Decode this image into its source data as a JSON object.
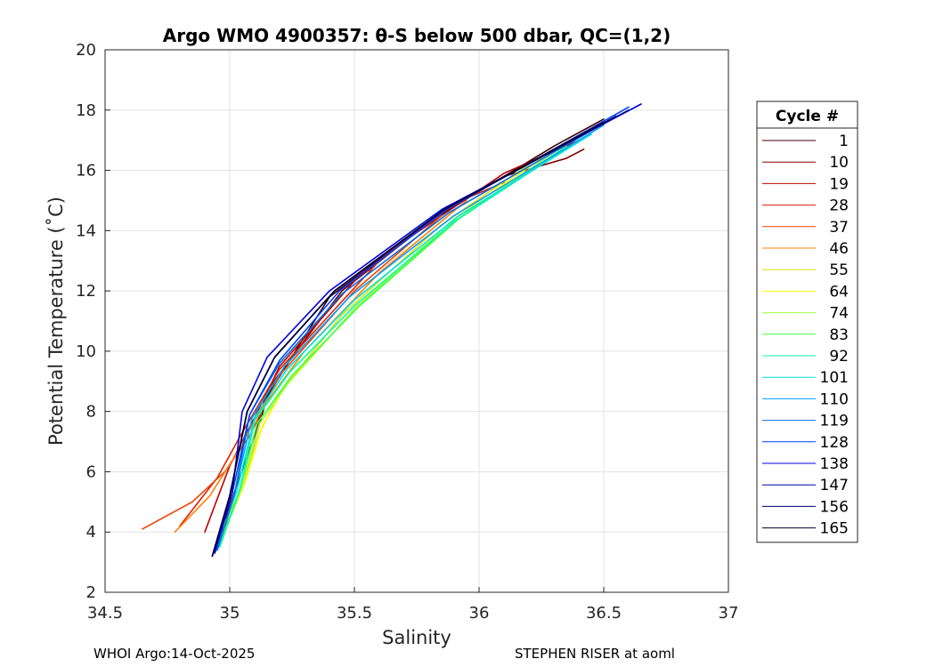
{
  "chart_data": {
    "type": "line",
    "title": "Argo WMO 4900357: θ-S below 500 dbar,  QC=(1,2)",
    "xlabel": "Salinity",
    "ylabel": "Potential Temperature (˚C)",
    "xlim": [
      34.5,
      37
    ],
    "ylim": [
      2,
      20
    ],
    "xticks": [
      "34.5",
      "35",
      "35.5",
      "36",
      "36.5",
      "37"
    ],
    "yticks": [
      "2",
      "4",
      "6",
      "8",
      "10",
      "12",
      "14",
      "16",
      "18",
      "20"
    ],
    "grid": true,
    "legend_title": "Cycle #",
    "legend_position": "outside-right",
    "series": [
      {
        "name": "1",
        "color": "#400000",
        "x": [
          34.95,
          35.05,
          35.1,
          35.15,
          35.4,
          35.8,
          36.1,
          36.3,
          36.5
        ],
        "y": [
          3.5,
          5.5,
          7.0,
          8.5,
          11.8,
          14.3,
          15.8,
          16.8,
          17.7
        ]
      },
      {
        "name": "10",
        "color": "#800000",
        "x": [
          34.95,
          35.03,
          35.1,
          35.15,
          35.45,
          35.85,
          36.1,
          36.35,
          36.42
        ],
        "y": [
          3.6,
          5.6,
          7.2,
          8.7,
          12.0,
          14.6,
          15.8,
          16.4,
          16.7
        ]
      },
      {
        "name": "19",
        "color": "#c00000",
        "x": [
          34.9,
          35.0,
          35.1,
          35.2,
          35.55,
          35.85,
          36.1,
          36.4
        ],
        "y": [
          4.0,
          6.2,
          7.8,
          9.5,
          12.8,
          14.5,
          15.9,
          17.0
        ]
      },
      {
        "name": "28",
        "color": "#e02000",
        "x": [
          34.8,
          34.95,
          35.05,
          35.2,
          35.6,
          35.9,
          36.1
        ],
        "y": [
          4.2,
          5.8,
          7.3,
          9.4,
          13.0,
          14.9,
          15.6
        ]
      },
      {
        "name": "37",
        "color": "#f04000",
        "x": [
          34.65,
          34.85,
          34.98,
          35.08,
          35.2,
          35.5,
          35.85
        ],
        "y": [
          4.1,
          5.0,
          6.0,
          7.2,
          9.2,
          12.0,
          14.5
        ]
      },
      {
        "name": "46",
        "color": "#ff8000",
        "x": [
          34.78,
          34.92,
          35.02,
          35.12,
          35.3,
          35.6,
          35.95
        ],
        "y": [
          4.0,
          5.2,
          6.5,
          8.0,
          10.0,
          12.6,
          15.0
        ]
      },
      {
        "name": "55",
        "color": "#e0e000",
        "x": [
          34.95,
          35.05,
          35.12,
          35.2,
          35.45,
          35.85,
          36.2
        ],
        "y": [
          3.8,
          5.5,
          7.3,
          8.6,
          11.2,
          14.2,
          16.2
        ]
      },
      {
        "name": "64",
        "color": "#ffff00",
        "x": [
          34.96,
          35.06,
          35.13,
          35.22,
          35.5,
          35.9,
          36.25
        ],
        "y": [
          3.7,
          5.6,
          7.5,
          8.8,
          11.4,
          14.4,
          16.4
        ]
      },
      {
        "name": "74",
        "color": "#a0ff40",
        "x": [
          34.96,
          35.05,
          35.12,
          35.24,
          35.5,
          35.9,
          36.3
        ],
        "y": [
          3.6,
          5.5,
          7.6,
          9.0,
          11.4,
          14.3,
          16.6
        ]
      },
      {
        "name": "83",
        "color": "#40ff40",
        "x": [
          34.96,
          35.04,
          35.11,
          35.25,
          35.52,
          35.92,
          36.35
        ],
        "y": [
          3.6,
          5.4,
          7.6,
          9.2,
          11.5,
          14.4,
          16.8
        ]
      },
      {
        "name": "92",
        "color": "#00ffa0",
        "x": [
          34.96,
          35.04,
          35.1,
          35.24,
          35.5,
          35.9,
          36.4
        ],
        "y": [
          3.5,
          5.4,
          7.7,
          9.3,
          11.5,
          14.3,
          17.0
        ]
      },
      {
        "name": "101",
        "color": "#00e0e0",
        "x": [
          34.95,
          35.03,
          35.1,
          35.23,
          35.5,
          35.92,
          36.45
        ],
        "y": [
          3.5,
          5.4,
          7.8,
          9.4,
          11.7,
          14.5,
          17.2
        ]
      },
      {
        "name": "110",
        "color": "#00a0ff",
        "x": [
          34.95,
          35.02,
          35.09,
          35.22,
          35.48,
          35.9,
          36.5
        ],
        "y": [
          3.4,
          5.3,
          7.8,
          9.5,
          11.8,
          14.5,
          17.5
        ]
      },
      {
        "name": "119",
        "color": "#0070e0",
        "x": [
          34.95,
          35.02,
          35.08,
          35.2,
          35.45,
          35.88,
          36.55
        ],
        "y": [
          3.4,
          5.3,
          7.9,
          9.6,
          11.9,
          14.6,
          17.8
        ]
      },
      {
        "name": "128",
        "color": "#0040ff",
        "x": [
          34.94,
          35.01,
          35.08,
          35.2,
          35.44,
          35.87,
          36.6
        ],
        "y": [
          3.3,
          5.3,
          7.9,
          9.7,
          12.0,
          14.7,
          18.1
        ]
      },
      {
        "name": "138",
        "color": "#0000e0",
        "x": [
          34.94,
          35.01,
          35.05,
          35.15,
          35.4,
          35.85,
          36.65
        ],
        "y": [
          3.3,
          5.3,
          8.0,
          9.8,
          12.0,
          14.7,
          18.2
        ]
      },
      {
        "name": "147",
        "color": "#0000a0",
        "x": [
          34.93,
          35.0,
          35.07,
          35.18,
          35.42,
          35.86,
          36.6
        ],
        "y": [
          3.2,
          5.2,
          8.0,
          9.8,
          12.0,
          14.7,
          18.0
        ]
      },
      {
        "name": "156",
        "color": "#000070",
        "x": [
          34.93,
          35.0,
          35.07,
          35.18,
          35.42,
          35.86,
          36.55
        ],
        "y": [
          3.2,
          5.2,
          8.0,
          9.8,
          12.0,
          14.7,
          17.8
        ]
      },
      {
        "name": "165",
        "color": "#000030",
        "x": [
          34.93,
          35.0,
          35.07,
          35.18,
          35.42,
          35.86,
          36.5
        ],
        "y": [
          3.2,
          5.2,
          8.0,
          9.8,
          12.0,
          14.7,
          17.6
        ]
      }
    ]
  },
  "footer": {
    "left": "WHOI Argo:14-Oct-2025",
    "right": "STEPHEN RISER at aoml"
  }
}
